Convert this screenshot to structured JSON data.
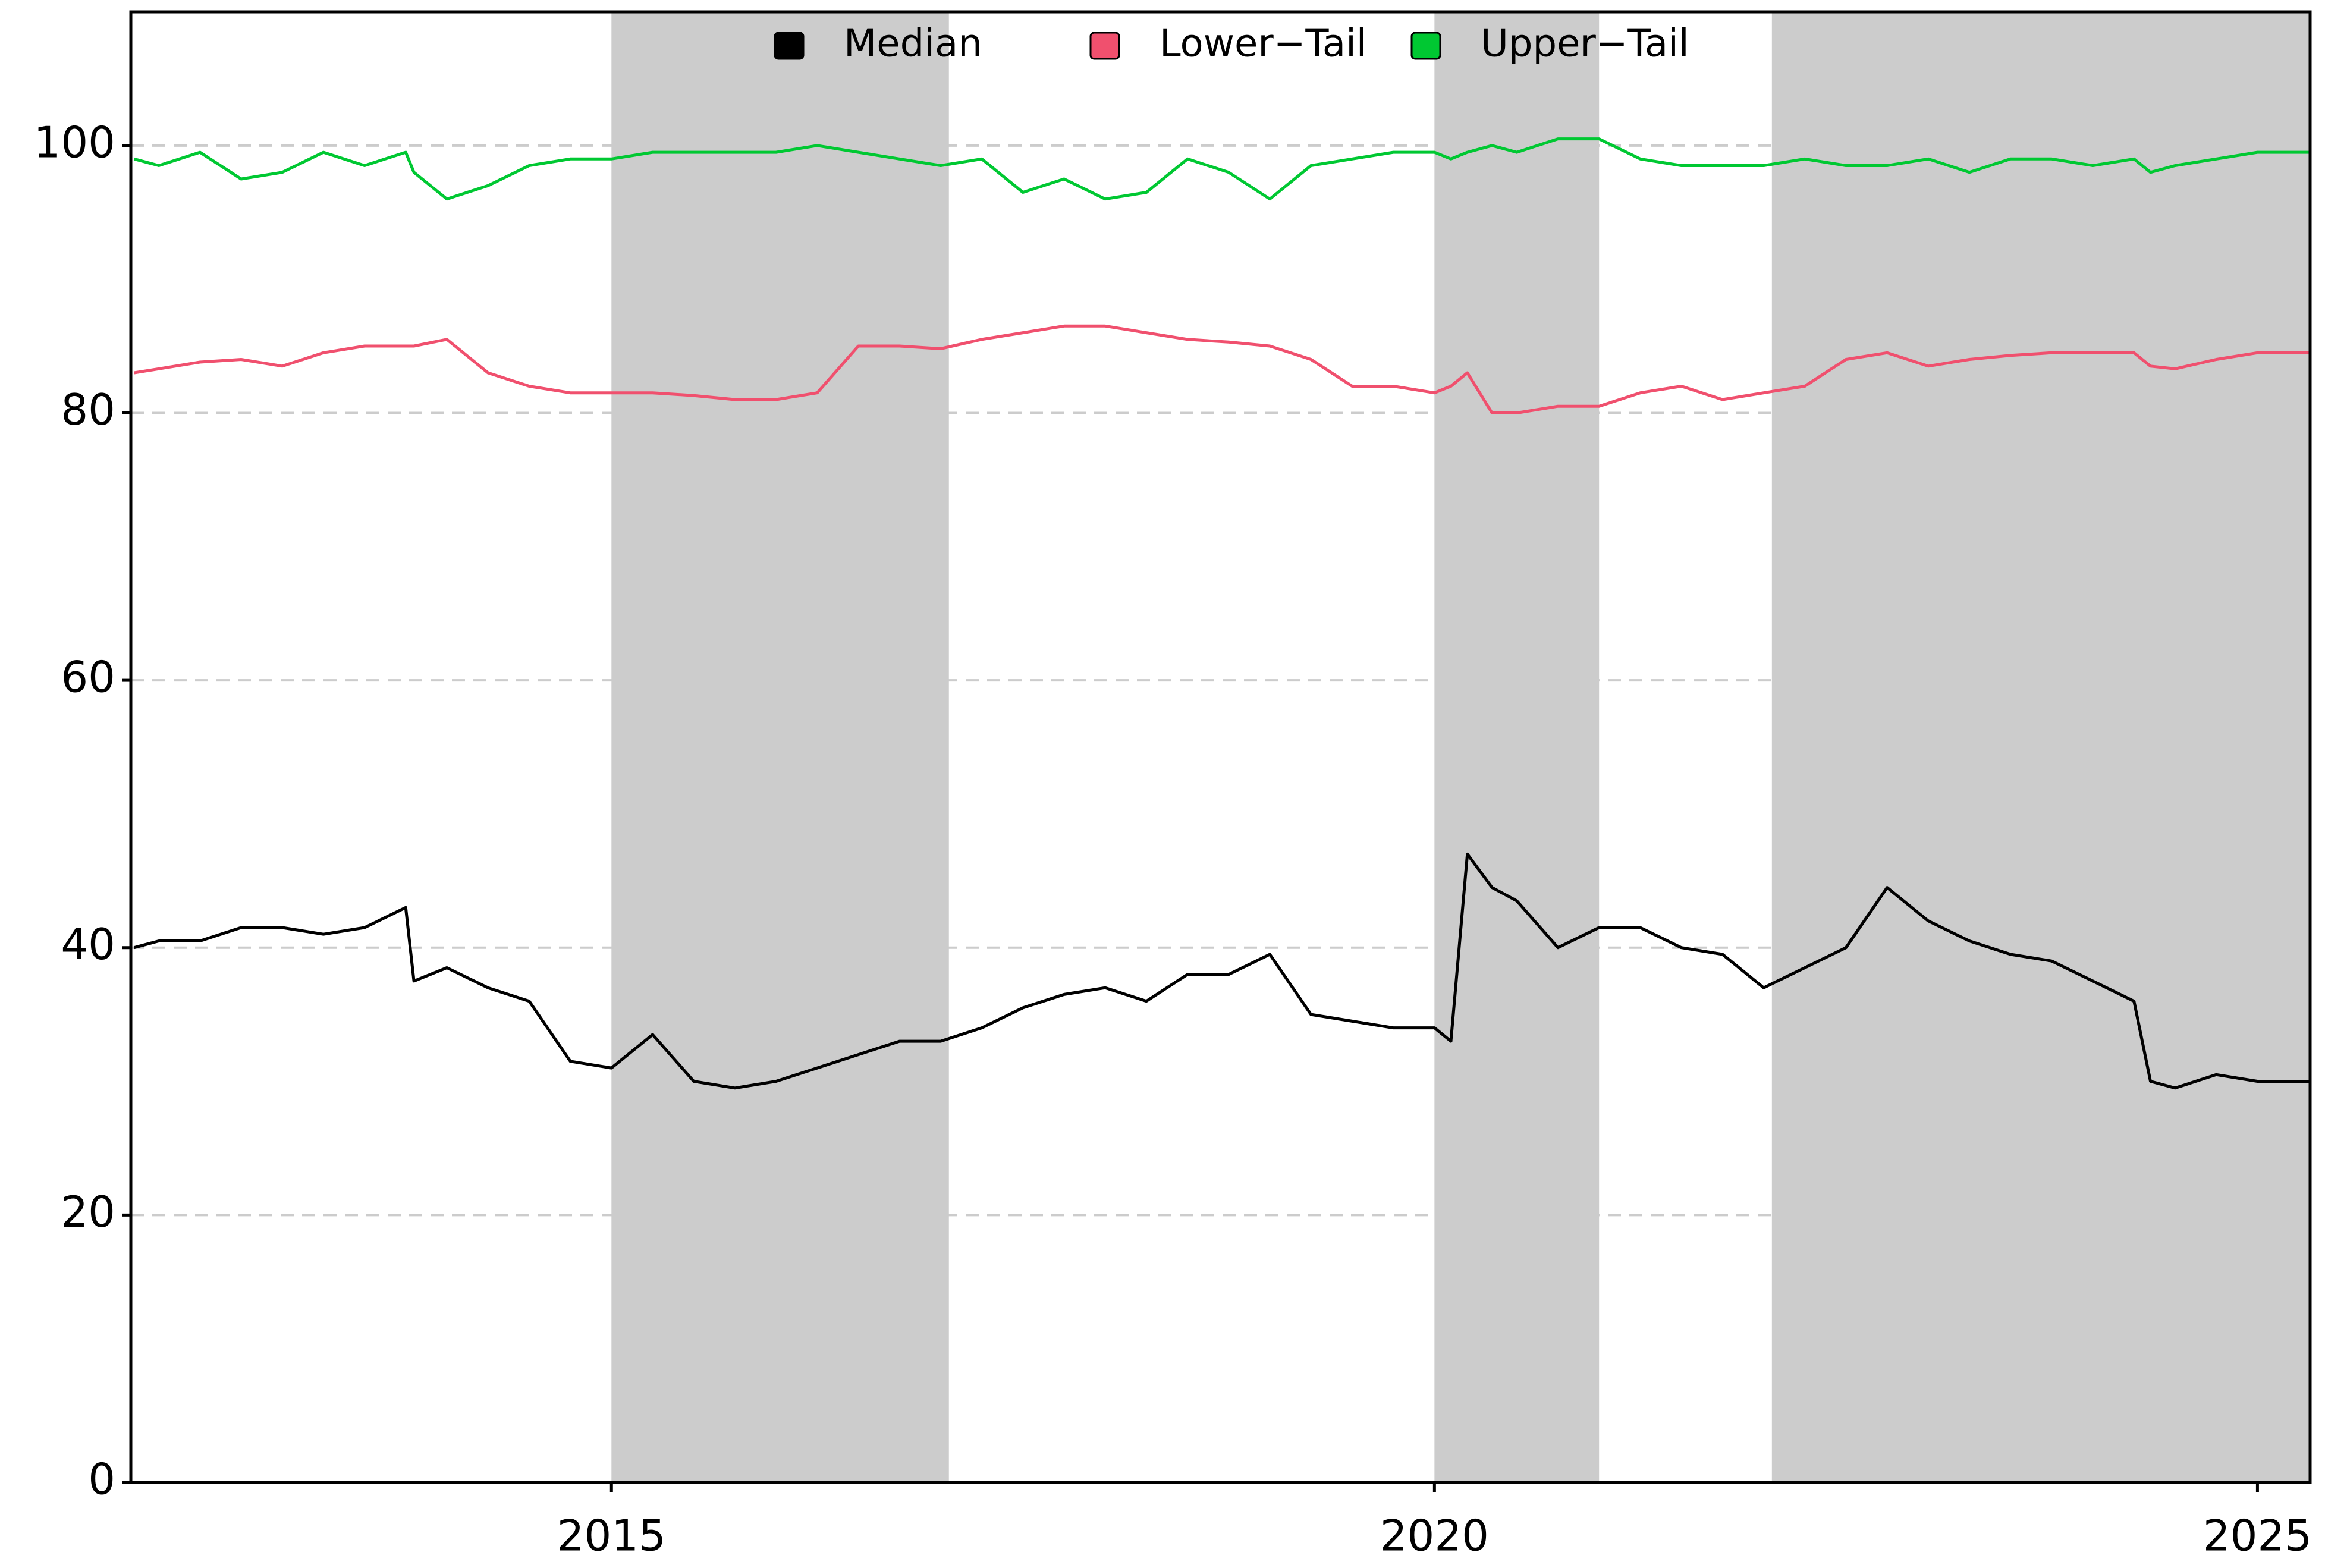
{
  "chart_data": {
    "type": "line",
    "x": [
      2012.1,
      2012.25,
      2012.5,
      2012.75,
      2013,
      2013.25,
      2013.5,
      2013.75,
      2013.8,
      2014,
      2014.25,
      2014.5,
      2014.75,
      2015,
      2015.25,
      2015.5,
      2015.75,
      2016,
      2016.25,
      2016.5,
      2016.75,
      2017,
      2017.25,
      2017.5,
      2017.75,
      2018,
      2018.25,
      2018.5,
      2018.75,
      2019,
      2019.25,
      2019.5,
      2019.75,
      2020,
      2020.1,
      2020.2,
      2020.35,
      2020.5,
      2020.75,
      2021,
      2021.25,
      2021.5,
      2021.75,
      2022,
      2022.25,
      2022.5,
      2022.75,
      2023,
      2023.25,
      2023.5,
      2023.75,
      2024,
      2024.25,
      2024.35,
      2024.5,
      2024.75,
      2025,
      2025.32
    ],
    "series": [
      {
        "name": "Median",
        "color": "#000000",
        "values": [
          40,
          40.5,
          40.5,
          41.5,
          41.5,
          41,
          41.5,
          43,
          37.5,
          38.5,
          37,
          36,
          31.5,
          31,
          33.5,
          30,
          29.5,
          30,
          31,
          32,
          33,
          33,
          34,
          35.5,
          36.5,
          37,
          36,
          38,
          38,
          39.5,
          35,
          34.5,
          34,
          34,
          33,
          47,
          44.5,
          43.5,
          40,
          41.5,
          41.5,
          40,
          39.5,
          37,
          38.5,
          40,
          44.5,
          42,
          40.5,
          39.5,
          39,
          37.5,
          36,
          30,
          29.5,
          30.5,
          30,
          30
        ]
      },
      {
        "name": "Lower−Tail",
        "color": "#f0506e",
        "values": [
          83,
          83.3,
          83.8,
          84,
          83.5,
          84.5,
          85,
          85,
          85,
          85.5,
          83,
          82,
          81.5,
          81.5,
          81.5,
          81.3,
          81,
          81,
          81.5,
          85,
          85,
          84.8,
          85.5,
          86,
          86.5,
          86.5,
          86,
          85.5,
          85.3,
          85,
          84,
          82,
          82,
          81.5,
          82,
          83,
          80,
          80,
          80.5,
          80.5,
          81.5,
          82,
          81,
          81.5,
          82,
          84,
          84.5,
          83.5,
          84,
          84.3,
          84.5,
          84.5,
          84.5,
          83.5,
          83.3,
          84,
          84.5,
          84.5
        ]
      },
      {
        "name": "Upper−Tail",
        "color": "#00c832",
        "values": [
          99,
          98.5,
          99.5,
          97.5,
          98,
          99.5,
          98.5,
          99.5,
          98,
          96,
          97,
          98.5,
          99,
          99,
          99.5,
          99.5,
          99.5,
          99.5,
          100,
          99.5,
          99,
          98.5,
          99,
          96.5,
          97.5,
          96,
          96.5,
          99,
          98,
          96,
          98.5,
          99,
          99.5,
          99.5,
          99,
          99.5,
          100,
          99.5,
          100.5,
          100.5,
          99,
          98.5,
          98.5,
          98.5,
          99,
          98.5,
          98.5,
          99,
          98,
          99,
          99,
          98.5,
          99,
          98,
          98.5,
          99,
          99.5,
          99.5
        ]
      }
    ],
    "shaded_regions": [
      [
        2015,
        2017.05
      ],
      [
        2020,
        2021
      ],
      [
        2022.05,
        2025.32
      ]
    ],
    "shade_color": "#cccccc",
    "xlim": [
      2012.08,
      2025.32
    ],
    "xticks": [
      2015,
      2020,
      2025
    ],
    "ylim": [
      0,
      110
    ],
    "yticks": [
      0,
      20,
      40,
      60,
      80,
      100
    ],
    "grid": true,
    "legend": "top"
  }
}
